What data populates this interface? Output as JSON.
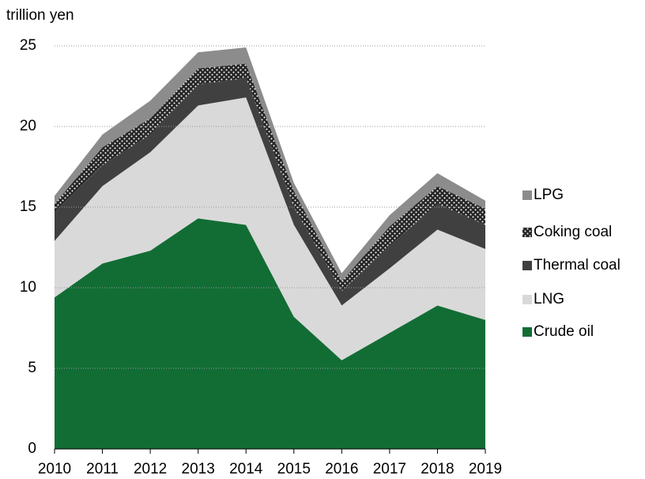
{
  "chart_data": {
    "type": "stacked_area",
    "y_label": "trillion yen",
    "categories": [
      "2010",
      "2011",
      "2012",
      "2013",
      "2014",
      "2015",
      "2016",
      "2017",
      "2018",
      "2019"
    ],
    "series": [
      {
        "name": "Crude oil",
        "color": "#126d35",
        "values": [
          9.4,
          11.5,
          12.3,
          14.3,
          13.9,
          8.2,
          5.5,
          7.2,
          8.9,
          8.0
        ]
      },
      {
        "name": "LNG",
        "color": "#d9d9d9",
        "values": [
          3.5,
          4.8,
          6.1,
          7.0,
          7.9,
          5.7,
          3.4,
          4.0,
          4.7,
          4.4
        ]
      },
      {
        "name": "Thermal coal",
        "color": "#404040",
        "values": [
          1.8,
          1.3,
          1.1,
          1.3,
          1.2,
          1.1,
          0.9,
          1.4,
          1.6,
          1.5
        ]
      },
      {
        "name": "Coking coal",
        "color": "#262626",
        "pattern": "dots",
        "values": [
          0.5,
          1.1,
          1.0,
          1.0,
          0.9,
          1.0,
          0.6,
          1.2,
          1.1,
          1.0
        ]
      },
      {
        "name": "LPG",
        "color": "#8c8c8c",
        "values": [
          0.5,
          0.8,
          1.1,
          1.0,
          1.0,
          0.5,
          0.5,
          0.7,
          0.8,
          0.5
        ]
      }
    ],
    "ylim": [
      0,
      25
    ],
    "yticks": [
      0,
      5,
      10,
      15,
      20,
      25
    ],
    "grid": true,
    "legend": "right"
  }
}
